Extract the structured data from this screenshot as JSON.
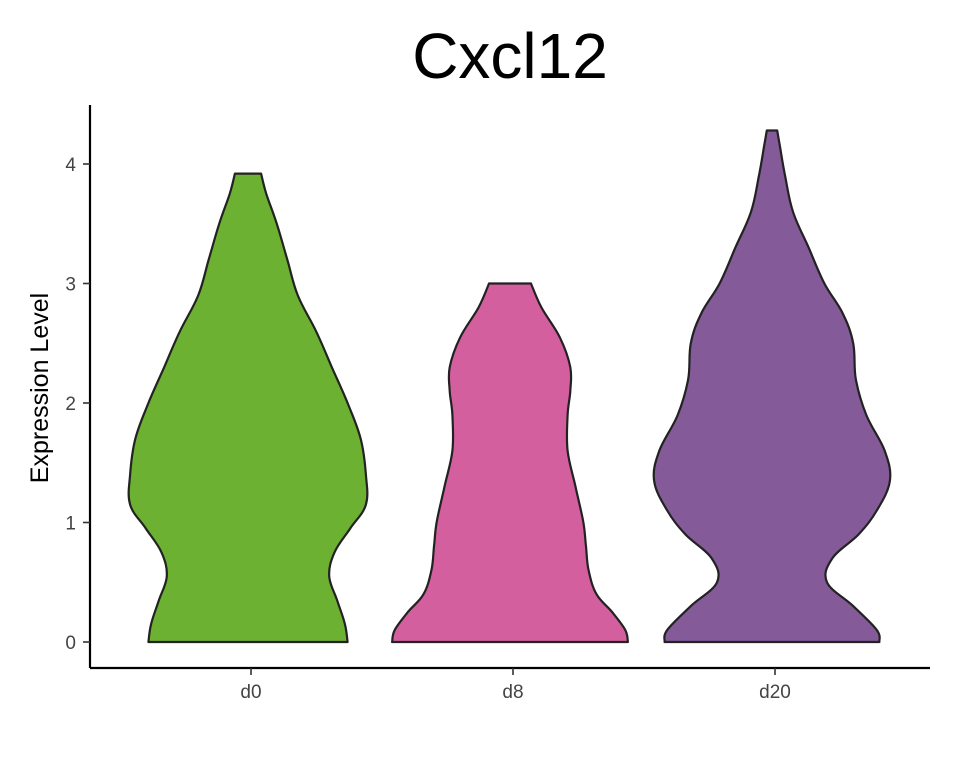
{
  "chart_data": {
    "type": "violin",
    "title": "Cxcl12",
    "xlabel": "",
    "ylabel": "Expression Level",
    "ylim": [
      -0.2,
      4.5
    ],
    "yticks": [
      0,
      1,
      2,
      3,
      4
    ],
    "grid": false,
    "legend": "none",
    "categories": [
      "d0",
      "d8",
      "d20"
    ],
    "violins": [
      {
        "category": "d0",
        "color": "#6DB132",
        "ymin": 0,
        "ymax": 3.92,
        "profile": [
          {
            "y": 0.0,
            "w": 0.38
          },
          {
            "y": 0.15,
            "w": 0.37
          },
          {
            "y": 0.35,
            "w": 0.34
          },
          {
            "y": 0.55,
            "w": 0.31
          },
          {
            "y": 0.75,
            "w": 0.33
          },
          {
            "y": 0.95,
            "w": 0.39
          },
          {
            "y": 1.15,
            "w": 0.45
          },
          {
            "y": 1.4,
            "w": 0.45
          },
          {
            "y": 1.7,
            "w": 0.43
          },
          {
            "y": 2.0,
            "w": 0.38
          },
          {
            "y": 2.3,
            "w": 0.32
          },
          {
            "y": 2.6,
            "w": 0.26
          },
          {
            "y": 2.9,
            "w": 0.19
          },
          {
            "y": 3.2,
            "w": 0.15
          },
          {
            "y": 3.5,
            "w": 0.11
          },
          {
            "y": 3.75,
            "w": 0.07
          },
          {
            "y": 3.92,
            "w": 0.05
          }
        ]
      },
      {
        "category": "d8",
        "color": "#D45F9E",
        "ymin": 0,
        "ymax": 3.0,
        "profile": [
          {
            "y": 0.0,
            "w": 0.45
          },
          {
            "y": 0.1,
            "w": 0.44
          },
          {
            "y": 0.25,
            "w": 0.39
          },
          {
            "y": 0.4,
            "w": 0.33
          },
          {
            "y": 0.6,
            "w": 0.3
          },
          {
            "y": 0.8,
            "w": 0.29
          },
          {
            "y": 1.0,
            "w": 0.28
          },
          {
            "y": 1.3,
            "w": 0.25
          },
          {
            "y": 1.6,
            "w": 0.22
          },
          {
            "y": 1.9,
            "w": 0.22
          },
          {
            "y": 2.1,
            "w": 0.23
          },
          {
            "y": 2.3,
            "w": 0.23
          },
          {
            "y": 2.55,
            "w": 0.19
          },
          {
            "y": 2.8,
            "w": 0.12
          },
          {
            "y": 3.0,
            "w": 0.08
          }
        ]
      },
      {
        "category": "d20",
        "color": "#845A99",
        "ymin": 0,
        "ymax": 4.28,
        "profile": [
          {
            "y": 0.0,
            "w": 0.41
          },
          {
            "y": 0.1,
            "w": 0.4
          },
          {
            "y": 0.3,
            "w": 0.31
          },
          {
            "y": 0.5,
            "w": 0.21
          },
          {
            "y": 0.7,
            "w": 0.23
          },
          {
            "y": 0.9,
            "w": 0.33
          },
          {
            "y": 1.1,
            "w": 0.4
          },
          {
            "y": 1.35,
            "w": 0.45
          },
          {
            "y": 1.6,
            "w": 0.43
          },
          {
            "y": 1.9,
            "w": 0.36
          },
          {
            "y": 2.2,
            "w": 0.32
          },
          {
            "y": 2.5,
            "w": 0.31
          },
          {
            "y": 2.75,
            "w": 0.27
          },
          {
            "y": 3.0,
            "w": 0.2
          },
          {
            "y": 3.3,
            "w": 0.14
          },
          {
            "y": 3.6,
            "w": 0.08
          },
          {
            "y": 3.9,
            "w": 0.05
          },
          {
            "y": 4.15,
            "w": 0.03
          },
          {
            "y": 4.28,
            "w": 0.02
          }
        ]
      }
    ]
  }
}
